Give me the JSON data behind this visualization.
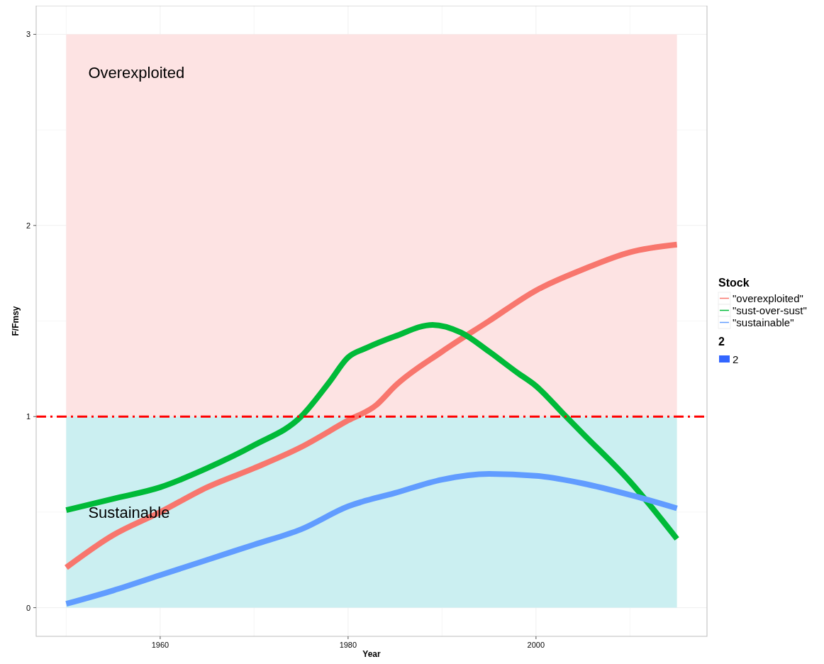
{
  "chart_data": {
    "type": "line",
    "xlabel": "Year",
    "ylabel": "F/Fmsy",
    "legend_title": "Stock",
    "xlim": [
      1946.8,
      2018.2
    ],
    "xticks": [
      1960,
      1980,
      2000
    ],
    "ylim": [
      -0.15,
      3.15
    ],
    "yticks": [
      0,
      1,
      2,
      3
    ],
    "grid": true,
    "legend": "right",
    "line_style": "solid",
    "series": [
      {
        "name": "\"overexploited\"",
        "color": "#f8766d",
        "x": [
          1950,
          1955,
          1960,
          1965,
          1970,
          1975,
          1980,
          1983,
          1985,
          1990,
          1995,
          2000,
          2005,
          2010,
          2015
        ],
        "values": [
          0.21,
          0.38,
          0.5,
          0.63,
          0.73,
          0.84,
          0.98,
          1.06,
          1.16,
          1.34,
          1.5,
          1.66,
          1.77,
          1.86,
          1.9
        ]
      },
      {
        "name": "\"sust-over-sust\"",
        "color": "#00ba38",
        "x": [
          1950,
          1955,
          1960,
          1965,
          1970,
          1975,
          1978,
          1980,
          1982,
          1985,
          1989,
          1992,
          1995,
          1998,
          2000,
          2003,
          2005,
          2010,
          2015
        ],
        "values": [
          0.51,
          0.57,
          0.63,
          0.73,
          0.85,
          1.0,
          1.18,
          1.31,
          1.36,
          1.42,
          1.48,
          1.44,
          1.34,
          1.23,
          1.16,
          1.01,
          0.91,
          0.66,
          0.36
        ]
      },
      {
        "name": "\"sustainable\"",
        "color": "#619cff",
        "x": [
          1950,
          1955,
          1960,
          1965,
          1970,
          1975,
          1980,
          1985,
          1990,
          1995,
          2000,
          2005,
          2010,
          2015
        ],
        "values": [
          0.02,
          0.09,
          0.17,
          0.25,
          0.33,
          0.41,
          0.53,
          0.6,
          0.67,
          0.7,
          0.69,
          0.65,
          0.59,
          0.52
        ]
      }
    ],
    "bands": [
      {
        "axis": "y",
        "from": 0,
        "to": 1,
        "label": "Sustainable",
        "color": "#cbeff1"
      },
      {
        "axis": "y",
        "from": 1,
        "to": 3,
        "label": "Overexploited",
        "color": "#fde3e3"
      }
    ],
    "ref_lines": [
      {
        "axis": "y",
        "value": 1,
        "color": "#ff0000",
        "line_style": "dashed"
      }
    ],
    "annotations": [
      "2",
      "2"
    ]
  }
}
